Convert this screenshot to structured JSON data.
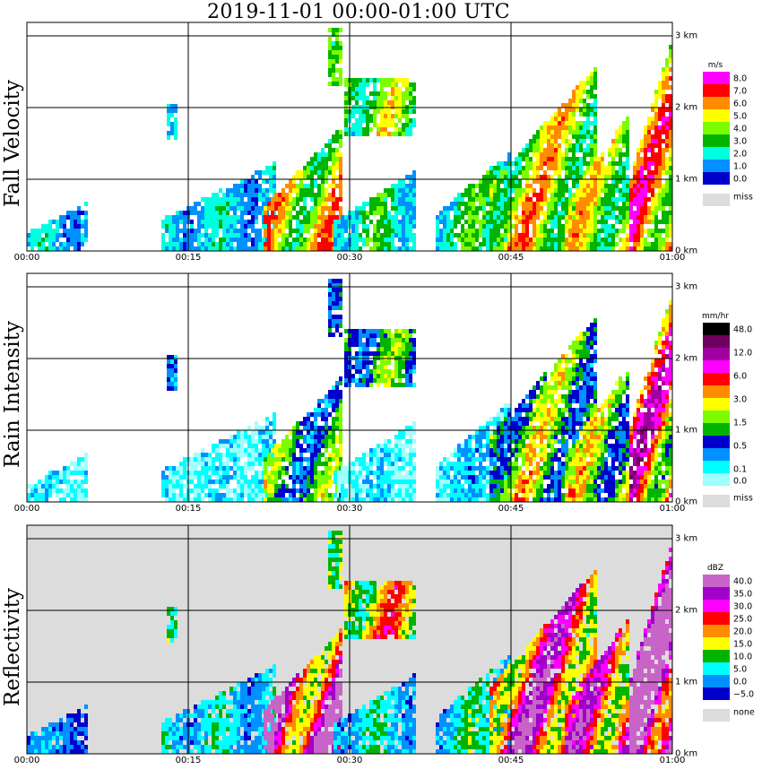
{
  "title": "2019-11-01   00:00-01:00 UTC",
  "colors": {
    "missing": "#dcdcdc",
    "grid": "#000000"
  },
  "time_ticks": [
    "00:00",
    "00:15",
    "00:30",
    "00:45",
    "01:00"
  ],
  "height_ticks": [
    "0 km",
    "1 km",
    "2 km",
    "3 km"
  ],
  "chart_data": [
    {
      "type": "heatmap",
      "name": "fall_velocity",
      "ylabel": "Fall Velocity",
      "x_range": [
        "00:00",
        "01:00"
      ],
      "y_range_km": [
        0,
        3.1
      ],
      "colorbar": {
        "unit": "m/s",
        "labels": [
          "8.0",
          "7.0",
          "6.0",
          "5.0",
          "4.0",
          "3.0",
          "2.0",
          "1.0",
          "0.0"
        ],
        "colors": [
          "#ff00ff",
          "#ff0000",
          "#ff8c00",
          "#ffff00",
          "#7cfc00",
          "#00b400",
          "#00ffe0",
          "#0090ff",
          "#0000cc"
        ],
        "missing_label": "miss"
      },
      "background": "none",
      "echoes": [
        {
          "t0": 0,
          "t1": 5.5,
          "top": 0.65,
          "dir": 0,
          "level": 0.55
        },
        {
          "t0": 12.5,
          "t1": 23,
          "top": 1.2,
          "dir": 0.05,
          "level": 0.6
        },
        {
          "t0": 13.0,
          "t1": 14.0,
          "top": 2.05,
          "bottom": 1.55,
          "dir": 0,
          "level": 1.0
        },
        {
          "t0": 22,
          "t1": 29,
          "top": 1.7,
          "dir": 1,
          "level": 1.8
        },
        {
          "t0": 28.5,
          "t1": 36,
          "top": 1.1,
          "dir": 0.3,
          "level": 0.9
        },
        {
          "t0": 28.0,
          "t1": 29.0,
          "top": 3.1,
          "bottom": 2.3,
          "dir": 0,
          "level": 2.8
        },
        {
          "t0": 29.5,
          "t1": 36,
          "top": 2.4,
          "bottom": 1.6,
          "dir": 0.8,
          "level": 1.6
        },
        {
          "t0": 38,
          "t1": 45,
          "top": 1.4,
          "dir": 0.5,
          "level": 1.0
        },
        {
          "t0": 43,
          "t1": 53,
          "top": 2.6,
          "dir": 1,
          "level": 1.8
        },
        {
          "t0": 50,
          "t1": 56,
          "top": 1.9,
          "dir": 1,
          "level": 1.6
        },
        {
          "t0": 56,
          "t1": 60,
          "top": 3.0,
          "dir": 1,
          "level": 2.2
        }
      ]
    },
    {
      "type": "heatmap",
      "name": "rain_intensity",
      "ylabel": "Rain Intensity",
      "x_range": [
        "00:00",
        "01:00"
      ],
      "y_range_km": [
        0,
        3.1
      ],
      "colorbar": {
        "unit": "mm/hr",
        "labels": [
          "48.0",
          "",
          "12.0",
          "",
          "6.0",
          "",
          "3.0",
          "",
          "1.5",
          "",
          "0.5",
          "",
          "0.1",
          "0.0"
        ],
        "colors": [
          "#000000",
          "#6e0060",
          "#a000a0",
          "#ff00ff",
          "#ff0000",
          "#ff8c00",
          "#ffff00",
          "#7cfc00",
          "#00b400",
          "#0000cc",
          "#0090ff",
          "#00ffff",
          "#a0ffff"
        ],
        "missing_label": "miss"
      },
      "background": "none",
      "echoes": [
        {
          "t0": 0,
          "t1": 5.5,
          "top": 0.65,
          "dir": 0,
          "level": 0.2
        },
        {
          "t0": 12.5,
          "t1": 23,
          "top": 1.2,
          "dir": 0.05,
          "level": 0.2
        },
        {
          "t0": 13.0,
          "t1": 14.0,
          "top": 2.05,
          "bottom": 1.55,
          "dir": 0,
          "level": 1.0
        },
        {
          "t0": 22,
          "t1": 29,
          "top": 1.7,
          "dir": 1,
          "level": 1.0
        },
        {
          "t0": 28.5,
          "t1": 36,
          "top": 1.1,
          "dir": 0.3,
          "level": 0.2
        },
        {
          "t0": 28.0,
          "t1": 29.0,
          "top": 3.1,
          "bottom": 2.3,
          "dir": 0,
          "level": 1.4
        },
        {
          "t0": 29.5,
          "t1": 36,
          "top": 2.4,
          "bottom": 1.6,
          "dir": 0.8,
          "level": 1.1
        },
        {
          "t0": 38,
          "t1": 45,
          "top": 1.4,
          "dir": 0.5,
          "level": 0.3
        },
        {
          "t0": 43,
          "t1": 53,
          "top": 2.6,
          "dir": 1,
          "level": 1.2
        },
        {
          "t0": 50,
          "t1": 56,
          "top": 1.9,
          "dir": 1,
          "level": 1.2
        },
        {
          "t0": 56,
          "t1": 60,
          "top": 3.0,
          "dir": 1,
          "level": 1.9
        }
      ]
    },
    {
      "type": "heatmap",
      "name": "reflectivity",
      "ylabel": "Reflectivity",
      "x_range": [
        "00:00",
        "01:00"
      ],
      "y_range_km": [
        0,
        3.1
      ],
      "colorbar": {
        "unit": "dBZ",
        "labels": [
          "40.0",
          "35.0",
          "30.0",
          "25.0",
          "20.0",
          "15.0",
          "10.0",
          "5.0",
          "0.0",
          "−5.0"
        ],
        "colors": [
          "#c864c8",
          "#a000c8",
          "#ff00ff",
          "#ff0000",
          "#ff8c00",
          "#ffff00",
          "#00b400",
          "#00ffff",
          "#0090ff",
          "#0000cc"
        ],
        "missing_label": "none"
      },
      "background": "#dcdcdc",
      "echoes": [
        {
          "t0": 0,
          "t1": 5.5,
          "top": 0.65,
          "dir": 0,
          "level": 0.3
        },
        {
          "t0": 12.5,
          "t1": 23,
          "top": 1.2,
          "dir": 0.05,
          "level": 0.6
        },
        {
          "t0": 13.0,
          "t1": 14.0,
          "top": 2.05,
          "bottom": 1.55,
          "dir": 0,
          "level": 1.5
        },
        {
          "t0": 22,
          "t1": 29,
          "top": 1.7,
          "dir": 1,
          "level": 2.3
        },
        {
          "t0": 28.5,
          "t1": 36,
          "top": 1.1,
          "dir": 0.3,
          "level": 0.6
        },
        {
          "t0": 28.0,
          "t1": 29.0,
          "top": 3.1,
          "bottom": 2.3,
          "dir": 0,
          "level": 2.2
        },
        {
          "t0": 29.5,
          "t1": 36,
          "top": 2.4,
          "bottom": 1.6,
          "dir": 0.8,
          "level": 1.7
        },
        {
          "t0": 38,
          "t1": 45,
          "top": 1.4,
          "dir": 0.5,
          "level": 0.7
        },
        {
          "t0": 43,
          "t1": 53,
          "top": 2.6,
          "dir": 1,
          "level": 2.2
        },
        {
          "t0": 50,
          "t1": 56,
          "top": 1.9,
          "dir": 1,
          "level": 2.0
        },
        {
          "t0": 56,
          "t1": 60,
          "top": 3.0,
          "dir": 1,
          "level": 3.0
        }
      ]
    }
  ]
}
